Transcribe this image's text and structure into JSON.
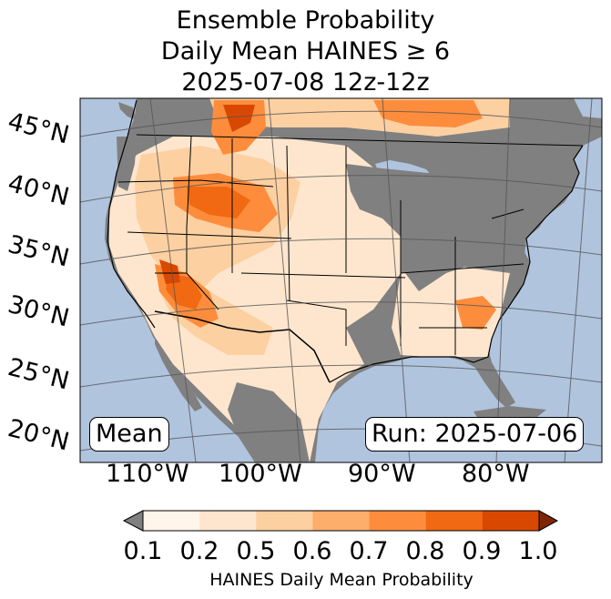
{
  "title": {
    "line1": "Ensemble Probability",
    "line2": "Daily Mean HAINES ≥ 6",
    "line3": "2025-07-08 12z-12z"
  },
  "map": {
    "latitude_labels": [
      "45°N",
      "40°N",
      "35°N",
      "30°N",
      "25°N",
      "20°N"
    ],
    "longitude_labels": [
      "110°W",
      "100°W",
      "90°W",
      "80°W"
    ],
    "stat_label": "Mean",
    "run_label": "Run: 2025-07-06",
    "colors": {
      "ocean": "#b0c4de",
      "no_data": "#808080",
      "grid": "#555555"
    }
  },
  "colorbar": {
    "tick_labels": [
      "0.1",
      "0.2",
      "0.5",
      "0.6",
      "0.7",
      "0.8",
      "0.9",
      "1.0"
    ],
    "label": "HAINES Daily Mean Probability",
    "colors": [
      "#fff5eb",
      "#fee6ce",
      "#fdd0a2",
      "#fdae6b",
      "#fd8d3c",
      "#f16913",
      "#d94801",
      "#8c2d04"
    ],
    "under_color": "#808080",
    "over_color": "#7f2704"
  }
}
